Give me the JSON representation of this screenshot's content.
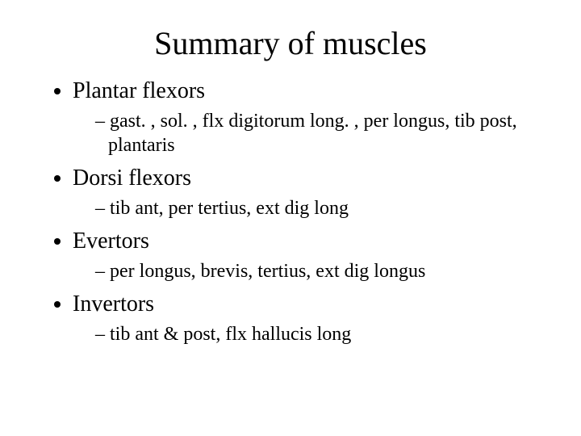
{
  "title": "Summary of muscles",
  "items": [
    {
      "label": "Plantar flexors",
      "sub": "gast. , sol. , flx digitorum long. , per longus, tib post, plantaris"
    },
    {
      "label": "Dorsi flexors",
      "sub": "tib ant, per tertius, ext dig long"
    },
    {
      "label": "Evertors",
      "sub": "per longus, brevis, tertius, ext dig longus"
    },
    {
      "label": "Invertors",
      "sub": "tib ant & post, flx hallucis long"
    }
  ]
}
